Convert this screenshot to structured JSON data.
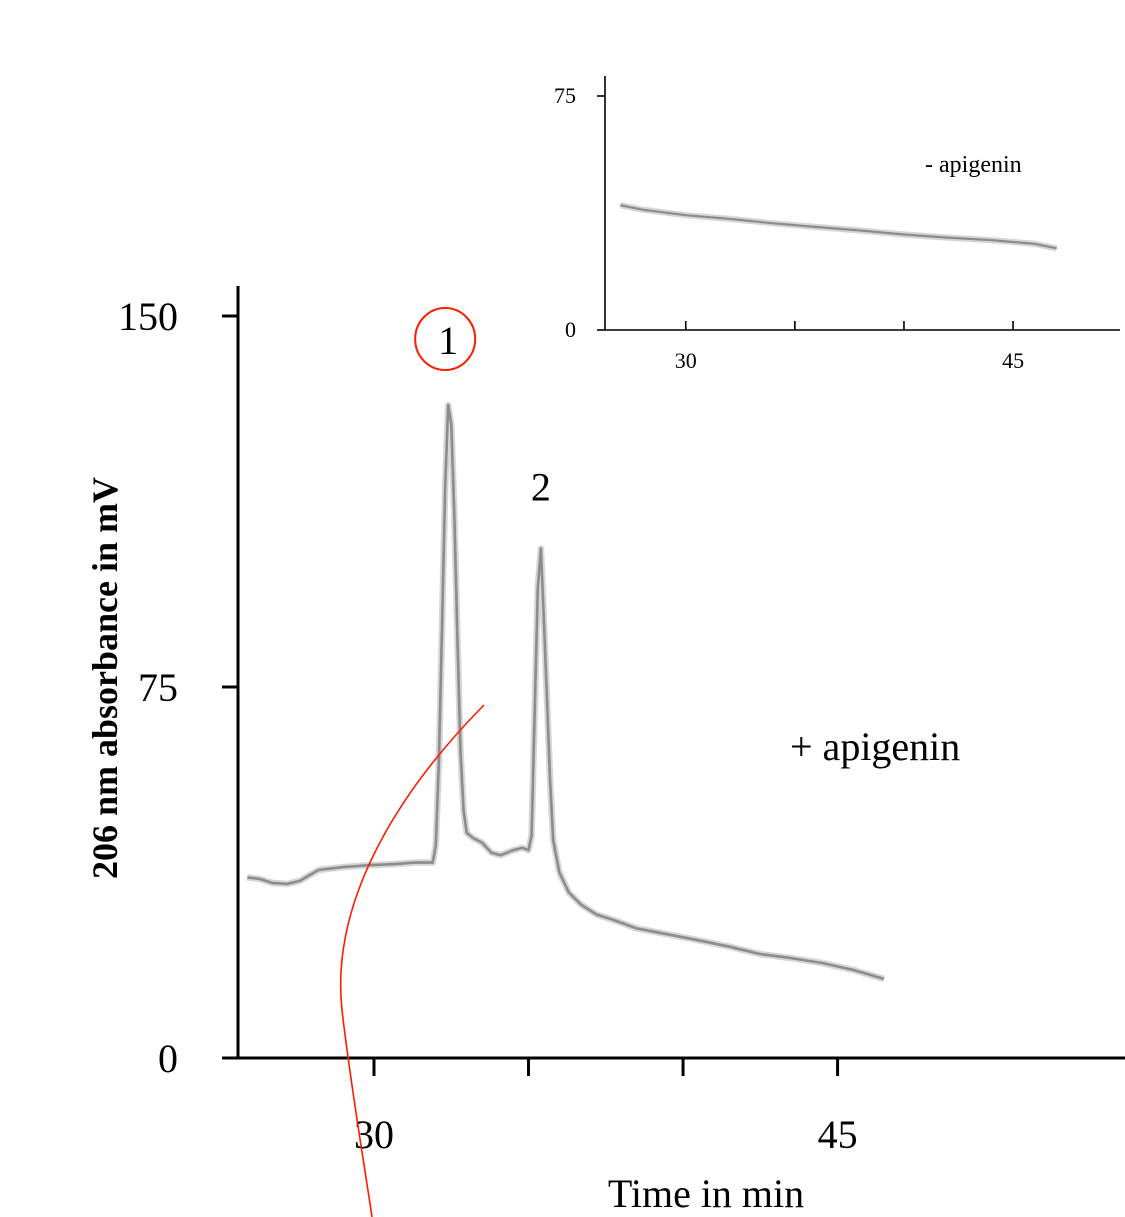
{
  "chart_data": [
    {
      "type": "line",
      "panel": "main",
      "title": "",
      "xlabel": "Time in min",
      "ylabel": "206 nm absorbance in mV",
      "xlim": [
        25.6,
        54.3
      ],
      "ylim": [
        0,
        150
      ],
      "x_ticks": [
        30,
        35,
        40,
        45
      ],
      "x_tick_labels": [
        "30",
        "",
        "",
        "45"
      ],
      "y_ticks": [
        0,
        75,
        150
      ],
      "y_tick_labels": [
        "0",
        "75",
        "150"
      ],
      "grid": false,
      "annotation": "+ apigenin",
      "peak_labels": [
        {
          "label": "1",
          "x": 32.4,
          "y": 132,
          "circled": true
        },
        {
          "label": "2",
          "x": 35.4,
          "y": 103,
          "circled": false
        }
      ],
      "series": [
        {
          "color": "#8c8c8c",
          "x": [
            25.9,
            26.3,
            26.7,
            27.2,
            27.6,
            28.2,
            29.0,
            29.9,
            30.7,
            31.3,
            31.9,
            32.0,
            32.1,
            32.2,
            32.3,
            32.4,
            32.5,
            32.6,
            32.7,
            32.8,
            32.9,
            33.0,
            33.2,
            33.5,
            33.8,
            34.1,
            34.5,
            34.8,
            35.0,
            35.1,
            35.2,
            35.3,
            35.4,
            35.5,
            35.6,
            35.7,
            35.8,
            36.0,
            36.3,
            36.7,
            37.2,
            37.8,
            38.5,
            39.5,
            40.5,
            41.5,
            42.5,
            43.5,
            44.5,
            45.5,
            46.5
          ],
          "y": [
            36.5,
            36.2,
            35.4,
            35.2,
            35.8,
            38.0,
            38.6,
            39.0,
            39.2,
            39.5,
            39.5,
            43,
            60,
            87,
            115,
            132,
            128,
            110,
            85,
            62,
            50,
            45.5,
            44.5,
            43.5,
            41.5,
            41.0,
            42.0,
            42.5,
            42.0,
            45,
            70,
            95,
            103,
            88,
            72,
            56,
            44,
            37.5,
            33.5,
            31.0,
            29.0,
            27.8,
            26.2,
            25.0,
            23.8,
            22.5,
            21.0,
            20.2,
            19.2,
            17.8,
            16.0
          ]
        }
      ]
    },
    {
      "type": "line",
      "panel": "inset",
      "title": "",
      "xlabel": "",
      "ylabel": "",
      "xlim": [
        26.3,
        49.9
      ],
      "ylim": [
        0,
        75
      ],
      "x_ticks": [
        30,
        35,
        40,
        45
      ],
      "x_tick_labels": [
        "30",
        "",
        "",
        "45"
      ],
      "y_ticks": [
        0,
        75
      ],
      "y_tick_labels": [
        "0",
        "75"
      ],
      "grid": false,
      "annotation": "- apigenin",
      "series": [
        {
          "color": "#8c8c8c",
          "x": [
            27.0,
            28.0,
            30.0,
            32.0,
            34.0,
            36.0,
            38.0,
            40.0,
            42.0,
            44.0,
            46.0,
            47.0
          ],
          "y": [
            40.0,
            38.6,
            36.8,
            35.6,
            34.2,
            33.0,
            31.9,
            30.6,
            29.6,
            28.8,
            27.6,
            26.2
          ]
        }
      ]
    }
  ],
  "decoration": {
    "callout_color": "#ff1a00"
  }
}
